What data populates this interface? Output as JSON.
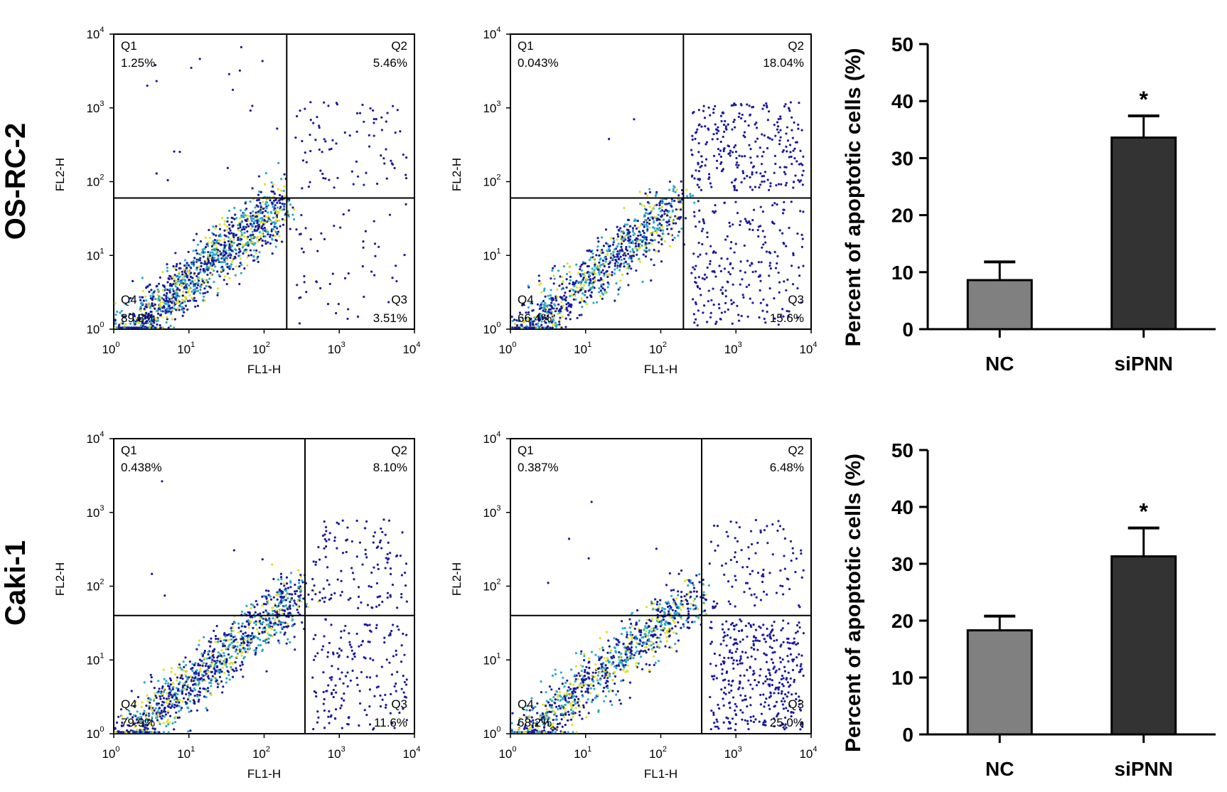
{
  "figure": {
    "row_labels": [
      "OS-RC-2",
      "Caki-1"
    ],
    "colors": {
      "dot_low": "#1a1aa0",
      "dot_mid": "#2aa9c9",
      "dot_high": "#e0e020",
      "bar_nc": "#808080",
      "bar_sipnn": "#333333"
    }
  },
  "chart_data": [
    {
      "type": "scatter",
      "row": "OS-RC-2",
      "panel": "NC",
      "xlabel": "FL1-H",
      "ylabel": "FL2-H",
      "x_scale": "log",
      "y_scale": "log",
      "xlim": [
        1,
        10000
      ],
      "ylim": [
        1,
        10000
      ],
      "x_ticks": [
        "10^0",
        "10^1",
        "10^2",
        "10^3",
        "10^4"
      ],
      "y_ticks": [
        "10^0",
        "10^1",
        "10^2",
        "10^3",
        "10^4"
      ],
      "gate": {
        "x": 200,
        "y": 60
      },
      "quadrants": [
        {
          "name": "Q1",
          "percent": "1.25%"
        },
        {
          "name": "Q2",
          "percent": "5.46%"
        },
        {
          "name": "Q3",
          "percent": "3.51%"
        },
        {
          "name": "Q4",
          "percent": "89.8%"
        }
      ]
    },
    {
      "type": "scatter",
      "row": "OS-RC-2",
      "panel": "siPNN",
      "xlabel": "FL1-H",
      "ylabel": "FL2-H",
      "x_scale": "log",
      "y_scale": "log",
      "xlim": [
        1,
        10000
      ],
      "ylim": [
        1,
        10000
      ],
      "x_ticks": [
        "10^0",
        "10^1",
        "10^2",
        "10^3",
        "10^4"
      ],
      "y_ticks": [
        "10^0",
        "10^1",
        "10^2",
        "10^3",
        "10^4"
      ],
      "gate": {
        "x": 200,
        "y": 60
      },
      "quadrants": [
        {
          "name": "Q1",
          "percent": "0.043%"
        },
        {
          "name": "Q2",
          "percent": "18.04%"
        },
        {
          "name": "Q3",
          "percent": "15.6%"
        },
        {
          "name": "Q4",
          "percent": "66.4%"
        }
      ]
    },
    {
      "type": "bar",
      "row": "OS-RC-2",
      "categories": [
        "NC",
        "siPNN"
      ],
      "values": [
        8.6,
        33.6
      ],
      "errors": [
        3.2,
        3.8
      ],
      "significance": [
        "",
        "*"
      ],
      "ylabel": "Percent of apoptotic cells (%)",
      "ylim": [
        0,
        50
      ],
      "yticks": [
        0,
        10,
        20,
        30,
        40,
        50
      ]
    },
    {
      "type": "scatter",
      "row": "Caki-1",
      "panel": "NC",
      "xlabel": "FL1-H",
      "ylabel": "FL2-H",
      "x_scale": "log",
      "y_scale": "log",
      "xlim": [
        1,
        10000
      ],
      "ylim": [
        1,
        10000
      ],
      "x_ticks": [
        "10^0",
        "10^1",
        "10^2",
        "10^3",
        "10^4"
      ],
      "y_ticks": [
        "10^0",
        "10^1",
        "10^2",
        "10^3",
        "10^4"
      ],
      "gate": {
        "x": 350,
        "y": 40
      },
      "quadrants": [
        {
          "name": "Q1",
          "percent": "0.438%"
        },
        {
          "name": "Q2",
          "percent": "8.10%"
        },
        {
          "name": "Q3",
          "percent": "11.6%"
        },
        {
          "name": "Q4",
          "percent": "79.9%"
        }
      ]
    },
    {
      "type": "scatter",
      "row": "Caki-1",
      "panel": "siPNN",
      "xlabel": "FL1-H",
      "ylabel": "FL2-H",
      "x_scale": "log",
      "y_scale": "log",
      "xlim": [
        1,
        10000
      ],
      "ylim": [
        1,
        10000
      ],
      "x_ticks": [
        "10^0",
        "10^1",
        "10^2",
        "10^3",
        "10^4"
      ],
      "y_ticks": [
        "10^0",
        "10^1",
        "10^2",
        "10^3",
        "10^4"
      ],
      "gate": {
        "x": 350,
        "y": 40
      },
      "quadrants": [
        {
          "name": "Q1",
          "percent": "0.387%"
        },
        {
          "name": "Q2",
          "percent": "6.48%"
        },
        {
          "name": "Q3",
          "percent": "25.0%"
        },
        {
          "name": "Q4",
          "percent": "68.2%"
        }
      ]
    },
    {
      "type": "bar",
      "row": "Caki-1",
      "categories": [
        "NC",
        "siPNN"
      ],
      "values": [
        18.3,
        31.3
      ],
      "errors": [
        2.5,
        5.0
      ],
      "significance": [
        "",
        "*"
      ],
      "ylabel": "Percent of apoptotic cells (%)",
      "ylim": [
        0,
        50
      ],
      "yticks": [
        0,
        10,
        20,
        30,
        40,
        50
      ]
    }
  ]
}
